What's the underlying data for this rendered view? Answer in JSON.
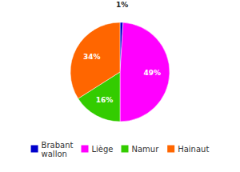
{
  "chart_data": {
    "type": "pie",
    "categories": [
      "Brabant\nwallon",
      "Liège",
      "Namur",
      "Hainaut"
    ],
    "values": [
      1,
      49,
      16,
      34
    ],
    "value_labels": [
      "1%",
      "49%",
      "16%",
      "34%"
    ],
    "colors": [
      "#0000cc",
      "#ff00ff",
      "#33cc00",
      "#ff6600"
    ],
    "data_labels": true,
    "legend": "bottom"
  }
}
